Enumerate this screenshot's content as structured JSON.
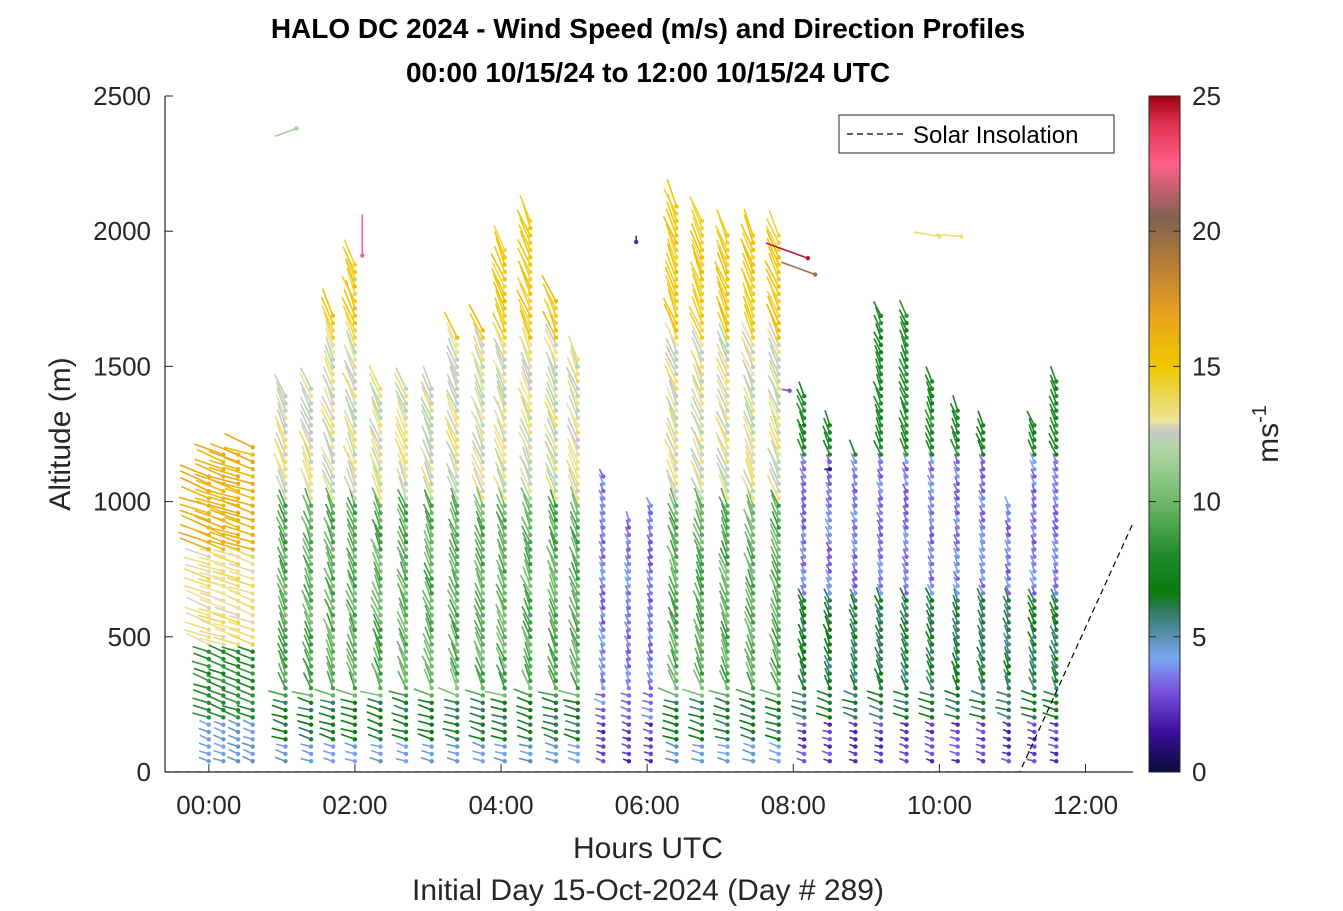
{
  "chart_data": {
    "type": "wind-barb-profile",
    "title_line1": "HALO DC 2024 - Wind Speed (m/s) and Direction Profiles",
    "title_line2": "00:00 10/15/24 to 12:00 10/15/24  UTC",
    "xlabel": "Hours UTC",
    "xlabel2": "Initial Day 15-Oct-2024 (Day # 289)",
    "ylabel": "Altitude (m)",
    "xlim": [
      -0.6,
      12.65
    ],
    "ylim": [
      0,
      2500
    ],
    "xticks": [
      {
        "value": 0,
        "label": "00:00"
      },
      {
        "value": 2,
        "label": "02:00"
      },
      {
        "value": 4,
        "label": "04:00"
      },
      {
        "value": 6,
        "label": "06:00"
      },
      {
        "value": 8,
        "label": "08:00"
      },
      {
        "value": 10,
        "label": "10:00"
      },
      {
        "value": 12,
        "label": "12:00"
      }
    ],
    "yticks": [
      {
        "value": 0,
        "label": "0"
      },
      {
        "value": 500,
        "label": "500"
      },
      {
        "value": 1000,
        "label": "1000"
      },
      {
        "value": 1500,
        "label": "1500"
      },
      {
        "value": 2000,
        "label": "2000"
      },
      {
        "value": 2500,
        "label": "2500"
      }
    ],
    "colorbar": {
      "label": "ms",
      "label_sup": "-1",
      "range": [
        0,
        25
      ],
      "ticks": [
        {
          "value": 0,
          "label": "0"
        },
        {
          "value": 5,
          "label": "5"
        },
        {
          "value": 10,
          "label": "10"
        },
        {
          "value": 15,
          "label": "15"
        },
        {
          "value": 20,
          "label": "20"
        },
        {
          "value": 25,
          "label": "25"
        }
      ],
      "stops": [
        {
          "value": 0,
          "color": "#0a0a3c"
        },
        {
          "value": 1.5,
          "color": "#3a0f9e"
        },
        {
          "value": 3,
          "color": "#7a52e0"
        },
        {
          "value": 4.2,
          "color": "#7aa6f0"
        },
        {
          "value": 5.2,
          "color": "#4f8ea4"
        },
        {
          "value": 6,
          "color": "#2e7a5a"
        },
        {
          "value": 6.6,
          "color": "#0b7a10"
        },
        {
          "value": 8,
          "color": "#1f8a2a"
        },
        {
          "value": 10,
          "color": "#70b86a"
        },
        {
          "value": 12,
          "color": "#b2d8a8"
        },
        {
          "value": 12.6,
          "color": "#c8c8c8"
        },
        {
          "value": 13,
          "color": "#ede39a"
        },
        {
          "value": 15,
          "color": "#f0c800"
        },
        {
          "value": 17,
          "color": "#e8a020"
        },
        {
          "value": 19,
          "color": "#b07a3a"
        },
        {
          "value": 20.5,
          "color": "#806050"
        },
        {
          "value": 22.5,
          "color": "#ff6088"
        },
        {
          "value": 24,
          "color": "#e03050"
        },
        {
          "value": 25,
          "color": "#a00010"
        }
      ]
    },
    "legend": {
      "label": "Solar Insolation",
      "placement": "top-right",
      "style": "dashed black line"
    },
    "profiles": [
      {
        "t": 0.0,
        "top": 1100,
        "regime": "low",
        "jet": 0
      },
      {
        "t": 0.2,
        "top": 1180,
        "regime": "low",
        "jet": 0
      },
      {
        "t": 0.4,
        "top": 1190,
        "regime": "low",
        "jet": 0
      },
      {
        "t": 0.6,
        "top": 1220,
        "regime": "low",
        "jet": 0
      },
      {
        "t": 1.05,
        "top": 1400,
        "regime": "mid",
        "jet": 0
      },
      {
        "t": 1.4,
        "top": 1420,
        "regime": "mid",
        "jet": 0
      },
      {
        "t": 1.7,
        "top": 1710,
        "regime": "mid",
        "jet": 0
      },
      {
        "t": 2.0,
        "top": 1880,
        "regime": "mid",
        "jet": 0
      },
      {
        "t": 2.35,
        "top": 1420,
        "regime": "mid",
        "jet": 0
      },
      {
        "t": 2.7,
        "top": 1420,
        "regime": "mid",
        "jet": 0
      },
      {
        "t": 3.05,
        "top": 1420,
        "regime": "mid",
        "jet": 0
      },
      {
        "t": 3.4,
        "top": 1620,
        "regime": "mid",
        "jet": 0
      },
      {
        "t": 3.75,
        "top": 1650,
        "regime": "mid",
        "jet": 0
      },
      {
        "t": 4.05,
        "top": 1950,
        "regime": "mid",
        "jet": 0
      },
      {
        "t": 4.4,
        "top": 2050,
        "regime": "mid",
        "jet": 0
      },
      {
        "t": 4.75,
        "top": 1750,
        "regime": "mid",
        "jet": 0
      },
      {
        "t": 5.05,
        "top": 1550,
        "regime": "mid",
        "jet": 0
      },
      {
        "t": 5.4,
        "top": 1100,
        "regime": "late",
        "jet": 0
      },
      {
        "t": 5.75,
        "top": 950,
        "regime": "late",
        "jet": 0
      },
      {
        "t": 6.05,
        "top": 1000,
        "regime": "late",
        "jet": 0
      },
      {
        "t": 6.4,
        "top": 2100,
        "regime": "mid",
        "jet": 0
      },
      {
        "t": 6.75,
        "top": 2050,
        "regime": "mid",
        "jet": 0
      },
      {
        "t": 7.1,
        "top": 2000,
        "regime": "mid",
        "jet": 0
      },
      {
        "t": 7.45,
        "top": 2000,
        "regime": "mid",
        "jet": 0
      },
      {
        "t": 7.8,
        "top": 2000,
        "regime": "mid",
        "jet": 0
      },
      {
        "t": 8.15,
        "top": 1400,
        "regime": "late",
        "jet": 1
      },
      {
        "t": 8.5,
        "top": 1300,
        "regime": "late",
        "jet": 1
      },
      {
        "t": 8.85,
        "top": 1200,
        "regime": "late",
        "jet": 1
      },
      {
        "t": 9.2,
        "top": 1700,
        "regime": "late",
        "jet": 1
      },
      {
        "t": 9.55,
        "top": 1700,
        "regime": "late",
        "jet": 1
      },
      {
        "t": 9.9,
        "top": 1450,
        "regime": "late",
        "jet": 1
      },
      {
        "t": 10.25,
        "top": 1350,
        "regime": "late",
        "jet": 1
      },
      {
        "t": 10.6,
        "top": 1300,
        "regime": "late",
        "jet": 1
      },
      {
        "t": 10.95,
        "top": 1000,
        "regime": "late",
        "jet": 1
      },
      {
        "t": 11.3,
        "top": 1300,
        "regime": "late",
        "jet": 1
      },
      {
        "t": 11.6,
        "top": 1450,
        "regime": "late",
        "jet": 1
      }
    ],
    "isolated_vectors": [
      {
        "t": 1.2,
        "alt": 2380,
        "speed": 11.5,
        "dir": 250
      },
      {
        "t": 2.1,
        "alt": 1910,
        "speed": 22.5,
        "dir": 0
      },
      {
        "t": 5.85,
        "alt": 1960,
        "speed": 2.0,
        "dir": 360
      },
      {
        "t": 8.2,
        "alt": 1900,
        "speed": 24.5,
        "dir": 290
      },
      {
        "t": 8.3,
        "alt": 1840,
        "speed": 19.5,
        "dir": 290
      },
      {
        "t": 10.0,
        "alt": 1980,
        "speed": 13.5,
        "dir": 280
      },
      {
        "t": 10.3,
        "alt": 1980,
        "speed": 13.5,
        "dir": 275
      },
      {
        "t": 7.95,
        "alt": 1410,
        "speed": 3.0,
        "dir": 280
      },
      {
        "t": 8.5,
        "alt": 1120,
        "speed": 1.5,
        "dir": 270
      }
    ],
    "solar_insolation": {
      "x": [
        -0.6,
        11.1,
        12.65
      ],
      "y": [
        0,
        0,
        920
      ]
    }
  }
}
